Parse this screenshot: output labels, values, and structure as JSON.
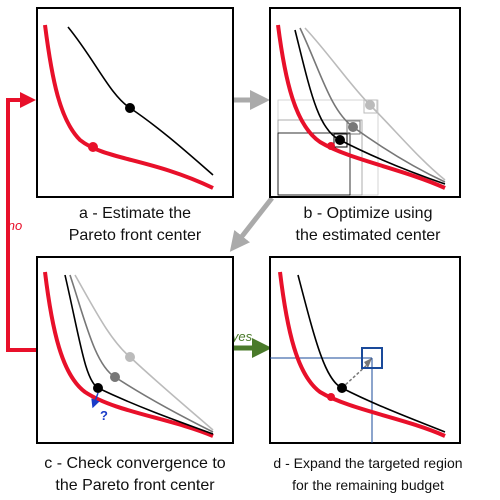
{
  "panels": [
    {
      "caption": [
        "a - Estimate the",
        "Pareto front center"
      ]
    },
    {
      "caption": [
        "b - Optimize using",
        "the estimated center"
      ]
    },
    {
      "caption": [
        "c - Check convergence to",
        "the Pareto front center"
      ]
    },
    {
      "caption": [
        "d - Expand the targeted region",
        "for the remaining budget"
      ]
    }
  ],
  "labels": {
    "no": "no",
    "yes": "yes",
    "question": "?"
  }
}
